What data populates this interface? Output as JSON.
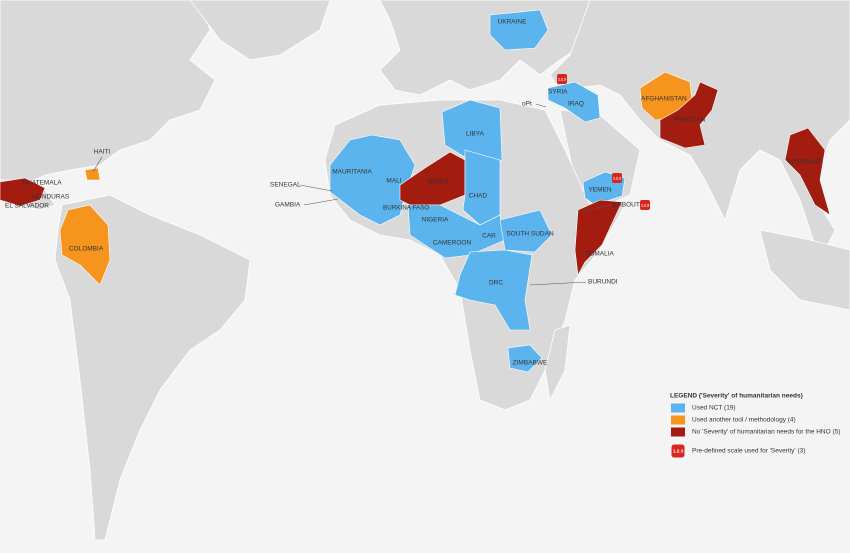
{
  "legend": {
    "title": "LEGEND ('Severity' of humanitarian needs)",
    "items": [
      {
        "label": "Used NCT (19)",
        "color": "#5bb4ee"
      },
      {
        "label": "Used another tool / methodology (4)",
        "color": "#f7941e"
      },
      {
        "label": "No 'Severity' of humanitarian needs for the HNO (5)",
        "color": "#a21c10"
      },
      {
        "label": "Pre-defined scale used for 'Severity' (3)",
        "color": "#d7261e",
        "icon": "1.2.3"
      }
    ]
  },
  "countries": [
    "UKRAINE",
    "SYRIA",
    "IRAQ",
    "oPt",
    "AFGHANISTAN",
    "PAKISTAN",
    "MYANMAR",
    "LIBYA",
    "MAURITANIA",
    "MALI",
    "NIGER",
    "SENEGAL",
    "GAMBIA",
    "BURKINA FASO",
    "NIGERIA",
    "CHAD",
    "CAMEROON",
    "CAR",
    "SOUTH SUDAN",
    "YEMEN",
    "DJIBOUTI",
    "SOMALIA",
    "DRC",
    "BURUNDI",
    "ZIMBABWE",
    "HAITI",
    "GUATEMALA",
    "HONDURAS",
    "EL SALVADOR",
    "COLOMBIA"
  ]
}
